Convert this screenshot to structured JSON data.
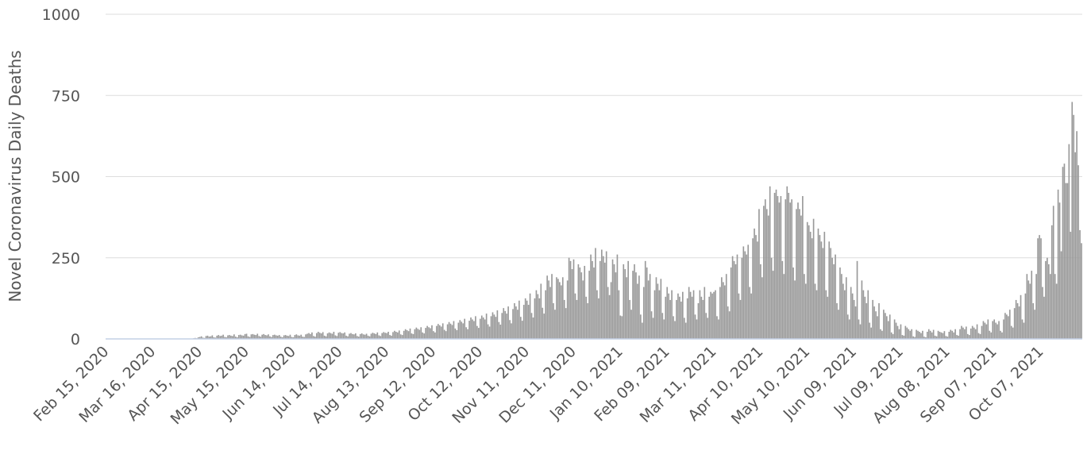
{
  "chart_data": {
    "type": "bar",
    "y_label": "Novel Coronavirus Daily Deaths",
    "color": "#999999",
    "ylim": [
      0,
      1000
    ],
    "yticks": [
      0,
      250,
      500,
      750,
      1000
    ],
    "grid": true,
    "categories": [
      "Feb 15, 2020",
      null,
      null,
      null,
      null,
      null,
      null,
      null,
      null,
      null,
      null,
      null,
      null,
      null,
      null,
      null,
      null,
      null,
      null,
      null,
      null,
      null,
      null,
      null,
      null,
      null,
      null,
      null,
      null,
      null,
      "Mar 16, 2020",
      null,
      null,
      null,
      null,
      null,
      null,
      null,
      null,
      null,
      null,
      null,
      null,
      null,
      null,
      null,
      null,
      null,
      null,
      null,
      null,
      null,
      null,
      null,
      null,
      null,
      null,
      null,
      null,
      null,
      "Apr 15, 2020",
      null,
      null,
      null,
      null,
      null,
      null,
      null,
      null,
      null,
      null,
      null,
      null,
      null,
      null,
      null,
      null,
      null,
      null,
      null,
      null,
      null,
      null,
      null,
      null,
      null,
      null,
      null,
      null,
      null,
      "May 15, 2020",
      null,
      null,
      null,
      null,
      null,
      null,
      null,
      null,
      null,
      null,
      null,
      null,
      null,
      null,
      null,
      null,
      null,
      null,
      null,
      null,
      null,
      null,
      null,
      null,
      null,
      null,
      null,
      null,
      null,
      "Jun 14, 2020",
      null,
      null,
      null,
      null,
      null,
      null,
      null,
      null,
      null,
      null,
      null,
      null,
      null,
      null,
      null,
      null,
      null,
      null,
      null,
      null,
      null,
      null,
      null,
      null,
      null,
      null,
      null,
      null,
      null,
      "Jul 14, 2020",
      null,
      null,
      null,
      null,
      null,
      null,
      null,
      null,
      null,
      null,
      null,
      null,
      null,
      null,
      null,
      null,
      null,
      null,
      null,
      null,
      null,
      null,
      null,
      null,
      null,
      null,
      null,
      null,
      null,
      "Aug 13, 2020",
      null,
      null,
      null,
      null,
      null,
      null,
      null,
      null,
      null,
      null,
      null,
      null,
      null,
      null,
      null,
      null,
      null,
      null,
      null,
      null,
      null,
      null,
      null,
      null,
      null,
      null,
      null,
      null,
      null,
      "Sep 12, 2020",
      null,
      null,
      null,
      null,
      null,
      null,
      null,
      null,
      null,
      null,
      null,
      null,
      null,
      null,
      null,
      null,
      null,
      null,
      null,
      null,
      null,
      null,
      null,
      null,
      null,
      null,
      null,
      null,
      null,
      "Oct 12, 2020",
      null,
      null,
      null,
      null,
      null,
      null,
      null,
      null,
      null,
      null,
      null,
      null,
      null,
      null,
      null,
      null,
      null,
      null,
      null,
      null,
      null,
      null,
      null,
      null,
      null,
      null,
      null,
      null,
      null,
      "Nov 11, 2020",
      null,
      null,
      null,
      null,
      null,
      null,
      null,
      null,
      null,
      null,
      null,
      null,
      null,
      null,
      null,
      null,
      null,
      null,
      null,
      null,
      null,
      null,
      null,
      null,
      null,
      null,
      null,
      null,
      null,
      "Dec 11, 2020",
      null,
      null,
      null,
      null,
      null,
      null,
      null,
      null,
      null,
      null,
      null,
      null,
      null,
      null,
      null,
      null,
      null,
      null,
      null,
      null,
      null,
      null,
      null,
      null,
      null,
      null,
      null,
      null,
      null,
      "Jan 10, 2021",
      null,
      null,
      null,
      null,
      null,
      null,
      null,
      null,
      null,
      null,
      null,
      null,
      null,
      null,
      null,
      null,
      null,
      null,
      null,
      null,
      null,
      null,
      null,
      null,
      null,
      null,
      null,
      null,
      null,
      "Feb 09, 2021",
      null,
      null,
      null,
      null,
      null,
      null,
      null,
      null,
      null,
      null,
      null,
      null,
      null,
      null,
      null,
      null,
      null,
      null,
      null,
      null,
      null,
      null,
      null,
      null,
      null,
      null,
      null,
      null,
      null,
      "Mar 11, 2021",
      null,
      null,
      null,
      null,
      null,
      null,
      null,
      null,
      null,
      null,
      null,
      null,
      null,
      null,
      null,
      null,
      null,
      null,
      null,
      null,
      null,
      null,
      null,
      null,
      null,
      null,
      null,
      null,
      null,
      "Apr 10, 2021",
      null,
      null,
      null,
      null,
      null,
      null,
      null,
      null,
      null,
      null,
      null,
      null,
      null,
      null,
      null,
      null,
      null,
      null,
      null,
      null,
      null,
      null,
      null,
      null,
      null,
      null,
      null,
      null,
      null,
      "May 10, 2021",
      null,
      null,
      null,
      null,
      null,
      null,
      null,
      null,
      null,
      null,
      null,
      null,
      null,
      null,
      null,
      null,
      null,
      null,
      null,
      null,
      null,
      null,
      null,
      null,
      null,
      null,
      null,
      null,
      null,
      "Jun 09, 2021",
      null,
      null,
      null,
      null,
      null,
      null,
      null,
      null,
      null,
      null,
      null,
      null,
      null,
      null,
      null,
      null,
      null,
      null,
      null,
      null,
      null,
      null,
      null,
      null,
      null,
      null,
      null,
      null,
      null,
      "Jul 09, 2021",
      null,
      null,
      null,
      null,
      null,
      null,
      null,
      null,
      null,
      null,
      null,
      null,
      null,
      null,
      null,
      null,
      null,
      null,
      null,
      null,
      null,
      null,
      null,
      null,
      null,
      null,
      null,
      null,
      null,
      "Aug 08, 2021",
      null,
      null,
      null,
      null,
      null,
      null,
      null,
      null,
      null,
      null,
      null,
      null,
      null,
      null,
      null,
      null,
      null,
      null,
      null,
      null,
      null,
      null,
      null,
      null,
      null,
      null,
      null,
      null,
      null,
      "Sep 07, 2021",
      null,
      null,
      null,
      null,
      null,
      null,
      null,
      null,
      null,
      null,
      null,
      null,
      null,
      null,
      null,
      null,
      null,
      null,
      null,
      null,
      null,
      null,
      null,
      null,
      null,
      null,
      null,
      null,
      null,
      "Oct 07, 2021",
      null,
      null,
      null,
      null,
      null,
      null,
      null,
      null,
      null,
      null,
      null,
      null,
      null,
      null,
      null,
      null,
      null,
      null,
      null,
      null,
      null,
      null,
      null,
      null,
      null,
      null
    ],
    "values": [
      0,
      0,
      0,
      0,
      0,
      0,
      0,
      0,
      0,
      0,
      0,
      0,
      0,
      0,
      0,
      0,
      0,
      0,
      0,
      0,
      0,
      0,
      0,
      0,
      0,
      0,
      0,
      0,
      0,
      0,
      0,
      0,
      0,
      0,
      0,
      0,
      0,
      0,
      0,
      0,
      0,
      0,
      0,
      0,
      0,
      0,
      0,
      0,
      0,
      0,
      0,
      0,
      0,
      0,
      0,
      1,
      2,
      3,
      2,
      5,
      6,
      8,
      4,
      3,
      9,
      10,
      7,
      8,
      11,
      5,
      4,
      10,
      12,
      9,
      10,
      13,
      6,
      5,
      11,
      12,
      10,
      9,
      14,
      7,
      5,
      12,
      13,
      11,
      10,
      15,
      16,
      8,
      6,
      14,
      15,
      13,
      12,
      16,
      9,
      7,
      13,
      15,
      12,
      11,
      14,
      8,
      6,
      12,
      13,
      11,
      10,
      12,
      7,
      5,
      11,
      12,
      10,
      9,
      13,
      6,
      5,
      12,
      14,
      11,
      10,
      13,
      7,
      6,
      14,
      16,
      18,
      15,
      20,
      9,
      7,
      18,
      22,
      19,
      17,
      21,
      10,
      8,
      17,
      20,
      18,
      16,
      22,
      11,
      9,
      19,
      21,
      18,
      17,
      20,
      10,
      8,
      16,
      18,
      15,
      14,
      17,
      9,
      7,
      15,
      17,
      14,
      13,
      16,
      10,
      8,
      16,
      19,
      17,
      15,
      20,
      11,
      9,
      18,
      21,
      19,
      18,
      22,
      12,
      10,
      21,
      25,
      22,
      20,
      26,
      14,
      12,
      25,
      30,
      27,
      24,
      32,
      17,
      15,
      30,
      35,
      31,
      28,
      36,
      20,
      17,
      34,
      40,
      36,
      33,
      42,
      24,
      20,
      40,
      46,
      42,
      38,
      48,
      28,
      24,
      45,
      52,
      47,
      43,
      55,
      32,
      27,
      50,
      58,
      53,
      48,
      62,
      36,
      30,
      56,
      66,
      60,
      55,
      70,
      40,
      34,
      62,
      72,
      66,
      60,
      78,
      45,
      38,
      70,
      82,
      75,
      68,
      88,
      52,
      44,
      80,
      95,
      86,
      78,
      100,
      58,
      48,
      92,
      110,
      100,
      90,
      118,
      68,
      56,
      105,
      125,
      118,
      105,
      140,
      80,
      66,
      125,
      150,
      138,
      125,
      170,
      96,
      78,
      150,
      195,
      180,
      160,
      200,
      110,
      90,
      190,
      185,
      175,
      165,
      190,
      120,
      95,
      180,
      250,
      240,
      215,
      245,
      140,
      120,
      230,
      220,
      205,
      180,
      225,
      130,
      110,
      210,
      260,
      240,
      220,
      280,
      150,
      125,
      240,
      275,
      255,
      235,
      270,
      160,
      135,
      175,
      245,
      230,
      205,
      260,
      150,
      72,
      70,
      230,
      215,
      190,
      240,
      120,
      90,
      210,
      230,
      205,
      170,
      195,
      75,
      50,
      160,
      240,
      220,
      180,
      200,
      85,
      65,
      150,
      190,
      170,
      150,
      185,
      80,
      60,
      130,
      160,
      140,
      120,
      150,
      70,
      55,
      120,
      140,
      130,
      115,
      145,
      65,
      50,
      125,
      160,
      145,
      130,
      150,
      75,
      60,
      110,
      150,
      130,
      120,
      160,
      80,
      65,
      130,
      145,
      140,
      145,
      150,
      70,
      60,
      160,
      190,
      175,
      165,
      200,
      100,
      85,
      220,
      255,
      240,
      230,
      260,
      140,
      120,
      250,
      285,
      270,
      260,
      290,
      160,
      140,
      310,
      340,
      320,
      300,
      400,
      230,
      190,
      410,
      430,
      400,
      380,
      470,
      250,
      210,
      450,
      460,
      440,
      420,
      440,
      240,
      200,
      430,
      470,
      450,
      420,
      430,
      220,
      180,
      400,
      420,
      400,
      380,
      440,
      200,
      170,
      360,
      350,
      330,
      310,
      370,
      170,
      150,
      340,
      320,
      300,
      280,
      330,
      150,
      130,
      300,
      280,
      250,
      230,
      260,
      110,
      90,
      220,
      200,
      170,
      150,
      190,
      75,
      60,
      160,
      140,
      120,
      100,
      240,
      60,
      45,
      180,
      150,
      130,
      110,
      150,
      50,
      35,
      120,
      100,
      85,
      70,
      110,
      30,
      25,
      90,
      80,
      70,
      55,
      75,
      20,
      15,
      60,
      50,
      40,
      30,
      45,
      12,
      10,
      40,
      35,
      30,
      25,
      30,
      8,
      6,
      28,
      25,
      22,
      18,
      25,
      7,
      5,
      22,
      30,
      25,
      20,
      28,
      10,
      8,
      25,
      22,
      20,
      18,
      24,
      9,
      7,
      22,
      28,
      25,
      20,
      30,
      12,
      10,
      30,
      40,
      35,
      30,
      38,
      15,
      12,
      32,
      40,
      35,
      30,
      45,
      18,
      15,
      40,
      55,
      50,
      45,
      60,
      25,
      20,
      55,
      60,
      50,
      45,
      55,
      25,
      20,
      60,
      80,
      75,
      70,
      90,
      40,
      35,
      95,
      120,
      110,
      100,
      135,
      60,
      50,
      140,
      200,
      180,
      170,
      210,
      110,
      90,
      200,
      310,
      320,
      310,
      160,
      130,
      240,
      250,
      230,
      200,
      350,
      410,
      200,
      170,
      460,
      420,
      270,
      530,
      540,
      480,
      480,
      600,
      330,
      730,
      690,
      575,
      640,
      535,
      335,
      295
    ]
  }
}
